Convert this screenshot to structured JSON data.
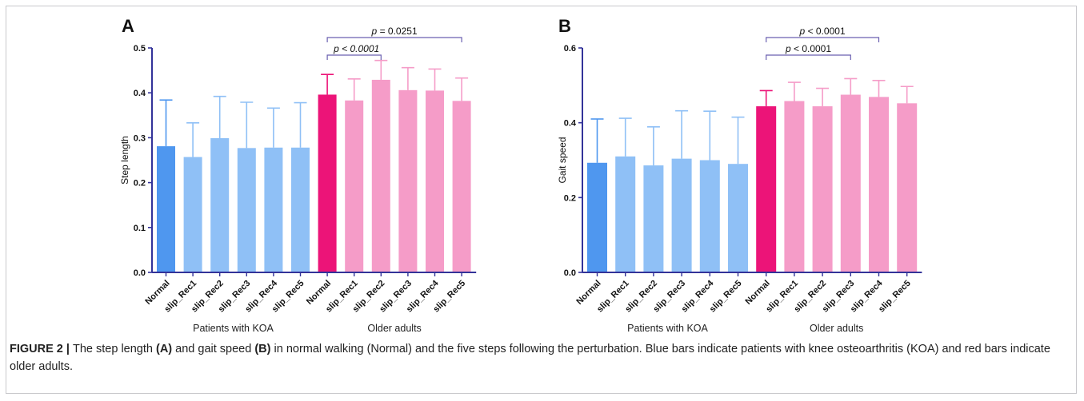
{
  "colors": {
    "koa_normal": "#4f97ef",
    "koa_rec": "#8fc0f6",
    "older_normal": "#ec1478",
    "older_rec": "#f59cc8",
    "axis": "#333399",
    "bracket": "#6a5fb0"
  },
  "caption": {
    "lead": "FIGURE 2 | ",
    "t1": "The step length ",
    "b1": "(A)",
    "t2": " and gait speed ",
    "b2": "(B)",
    "t3": " in normal walking (Normal) and the five steps following the perturbation. Blue bars indicate patients with knee osteoarthritis (KOA) and red bars indicate older adults."
  },
  "chart_data": [
    {
      "type": "bar",
      "panel_label": "A",
      "ylabel": "Step length",
      "ylim": [
        0,
        0.5
      ],
      "yticks": [
        "0.0",
        "0.1",
        "0.2",
        "0.3",
        "0.4",
        "0.5"
      ],
      "categories": [
        "Normal",
        "slip_Rec1",
        "slip_Rec2",
        "slip_Rec3",
        "slip_Rec4",
        "slip_Rec5",
        "Normal",
        "slip_Rec1",
        "slip_Rec2",
        "slip_Rec3",
        "slip_Rec4",
        "slip_Rec5"
      ],
      "groups": [
        "Patients with KOA",
        "Older adults"
      ],
      "series": [
        {
          "values": [
            0.281,
            0.257,
            0.299,
            0.277,
            0.278,
            0.278,
            null,
            null,
            null,
            null,
            null,
            null
          ],
          "errors": [
            0.103,
            0.076,
            0.093,
            0.102,
            0.088,
            0.1,
            null,
            null,
            null,
            null,
            null,
            null
          ]
        },
        {
          "values": [
            null,
            null,
            null,
            null,
            null,
            null,
            0.396,
            0.383,
            0.429,
            0.406,
            0.405,
            0.382
          ],
          "errors": [
            null,
            null,
            null,
            null,
            null,
            null,
            0.045,
            0.048,
            0.043,
            0.05,
            0.048,
            0.051
          ]
        }
      ],
      "annotations": [
        {
          "text": "p < 0.0001",
          "from": 6,
          "to": 8,
          "italic_all": true
        },
        {
          "text": "p = 0.0251",
          "from": 6,
          "to": 11,
          "italic_all": false
        }
      ]
    },
    {
      "type": "bar",
      "panel_label": "B",
      "ylabel": "Gait speed",
      "ylim": [
        0,
        0.6
      ],
      "yticks": [
        "0.0",
        "0.2",
        "0.4",
        "0.6"
      ],
      "categories": [
        "Normal",
        "slip_Rec1",
        "slip_Rec2",
        "slip_Rec3",
        "slip_Rec4",
        "slip_Rec5",
        "Normal",
        "slip_Rec1",
        "slip_Rec2",
        "slip_Rec3",
        "slip_Rec4",
        "slip_Rec5"
      ],
      "groups": [
        "Patients with KOA",
        "Older adults"
      ],
      "series": [
        {
          "values": [
            0.293,
            0.31,
            0.286,
            0.304,
            0.3,
            0.29,
            null,
            null,
            null,
            null,
            null,
            null
          ],
          "errors": [
            0.117,
            0.102,
            0.103,
            0.128,
            0.131,
            0.125,
            null,
            null,
            null,
            null,
            null,
            null
          ]
        },
        {
          "values": [
            null,
            null,
            null,
            null,
            null,
            null,
            0.444,
            0.458,
            0.444,
            0.475,
            0.469,
            0.452
          ],
          "errors": [
            null,
            null,
            null,
            null,
            null,
            null,
            0.042,
            0.05,
            0.048,
            0.043,
            0.044,
            0.045
          ]
        }
      ],
      "annotations": [
        {
          "text": "p < 0.0001",
          "from": 6,
          "to": 9,
          "italic_all": false
        },
        {
          "text": "p < 0.0001",
          "from": 6,
          "to": 10,
          "italic_all": false
        }
      ]
    }
  ]
}
